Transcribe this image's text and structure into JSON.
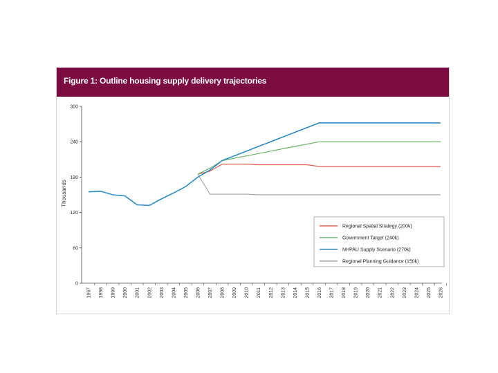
{
  "figure": {
    "title": "Figure 1: Outline housing supply delivery trajectories",
    "header_color": "#7b0c42"
  },
  "chart_data": {
    "type": "line",
    "title": "Figure 1: Outline housing supply delivery trajectories",
    "xlabel": "",
    "ylabel": "Thousands",
    "ylim": [
      0,
      300
    ],
    "yticks": [
      0,
      60,
      120,
      180,
      240,
      300
    ],
    "categories": [
      "1997",
      "1998",
      "1999",
      "2000",
      "2001",
      "2002",
      "2003",
      "2004",
      "2005",
      "2006",
      "2007",
      "2008",
      "2009",
      "2010",
      "2011",
      "2012",
      "2013",
      "2014",
      "2015",
      "2016",
      "2017",
      "2018",
      "2019",
      "2020",
      "2021",
      "2022",
      "2023",
      "2024",
      "2025",
      "2026"
    ],
    "grid": false,
    "legend_position": "bottom-right",
    "series": [
      {
        "name": "Regional Spatial Strategy (200k)",
        "color": "#e05a4e",
        "x": [
          "2006",
          "2007",
          "2008",
          "2009",
          "2010",
          "2011",
          "2012",
          "2013",
          "2014",
          "2015",
          "2016",
          "2017",
          "2018",
          "2019",
          "2020",
          "2021",
          "2022",
          "2023",
          "2024",
          "2025",
          "2026"
        ],
        "values": [
          185,
          190,
          202,
          202,
          202,
          201,
          201,
          201,
          201,
          201,
          198,
          198,
          198,
          198,
          198,
          198,
          198,
          198,
          198,
          198,
          198
        ]
      },
      {
        "name": "Government Target (240k)",
        "color": "#6fb36a",
        "x": [
          "2006",
          "2007",
          "2008",
          "2009",
          "2010",
          "2011",
          "2012",
          "2013",
          "2014",
          "2015",
          "2016",
          "2017",
          "2018",
          "2019",
          "2020",
          "2021",
          "2022",
          "2023",
          "2024",
          "2025",
          "2026"
        ],
        "values": [
          185,
          195,
          208,
          212,
          216,
          220,
          224,
          228,
          232,
          236,
          240,
          240,
          240,
          240,
          240,
          240,
          240,
          240,
          240,
          240,
          240
        ]
      },
      {
        "name": "NHPAU Supply Scenario (270k)",
        "color": "#2b8bc3",
        "x": [
          "1997",
          "1998",
          "1999",
          "2000",
          "2001",
          "2002",
          "2003",
          "2004",
          "2005",
          "2006",
          "2007",
          "2008",
          "2009",
          "2010",
          "2011",
          "2012",
          "2013",
          "2014",
          "2015",
          "2016",
          "2017",
          "2018",
          "2019",
          "2020",
          "2021",
          "2022",
          "2023",
          "2024",
          "2025",
          "2026"
        ],
        "values": [
          155,
          156,
          150,
          148,
          133,
          132,
          143,
          153,
          164,
          180,
          192,
          208,
          216,
          224,
          232,
          240,
          248,
          256,
          264,
          272,
          272,
          272,
          272,
          272,
          272,
          272,
          272,
          272,
          272,
          272
        ]
      },
      {
        "name": "Regional Planning Guidance (150k)",
        "color": "#a8a8a8",
        "x": [
          "2006",
          "2007",
          "2008",
          "2009",
          "2010",
          "2011",
          "2012",
          "2013",
          "2014",
          "2015",
          "2016",
          "2017",
          "2018",
          "2019",
          "2020",
          "2021",
          "2022",
          "2023",
          "2024",
          "2025",
          "2026"
        ],
        "values": [
          185,
          151,
          151,
          151,
          151,
          150,
          150,
          150,
          150,
          150,
          150,
          150,
          150,
          150,
          150,
          150,
          150,
          150,
          150,
          150,
          150
        ]
      }
    ]
  }
}
